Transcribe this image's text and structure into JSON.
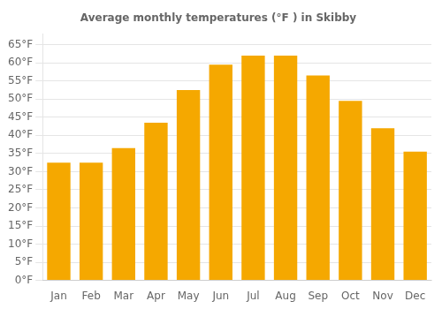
{
  "chart_data": {
    "type": "bar",
    "title": "Average monthly temperatures (°F ) in Skibby",
    "categories": [
      "Jan",
      "Feb",
      "Mar",
      "Apr",
      "May",
      "Jun",
      "Jul",
      "Aug",
      "Sep",
      "Oct",
      "Nov",
      "Dec"
    ],
    "values": [
      32.5,
      32.5,
      36.5,
      43.5,
      52.5,
      59.5,
      62.0,
      62.0,
      56.5,
      49.5,
      42.0,
      35.5
    ],
    "color": "#F5A800",
    "ylim": [
      0,
      68
    ],
    "yticks": [
      {
        "value": 0,
        "label": "0°F"
      },
      {
        "value": 5,
        "label": "5°F"
      },
      {
        "value": 10,
        "label": "10°F"
      },
      {
        "value": 15,
        "label": "15°F"
      },
      {
        "value": 20,
        "label": "20°F"
      },
      {
        "value": 25,
        "label": "25°F"
      },
      {
        "value": 30,
        "label": "30°F"
      },
      {
        "value": 35,
        "label": "35°F"
      },
      {
        "value": 40,
        "label": "40°F"
      },
      {
        "value": 45,
        "label": "45°F"
      },
      {
        "value": 50,
        "label": "50°F"
      },
      {
        "value": 55,
        "label": "55°F"
      },
      {
        "value": 60,
        "label": "60°F"
      },
      {
        "value": 65,
        "label": "65°F"
      }
    ],
    "grid": true
  }
}
